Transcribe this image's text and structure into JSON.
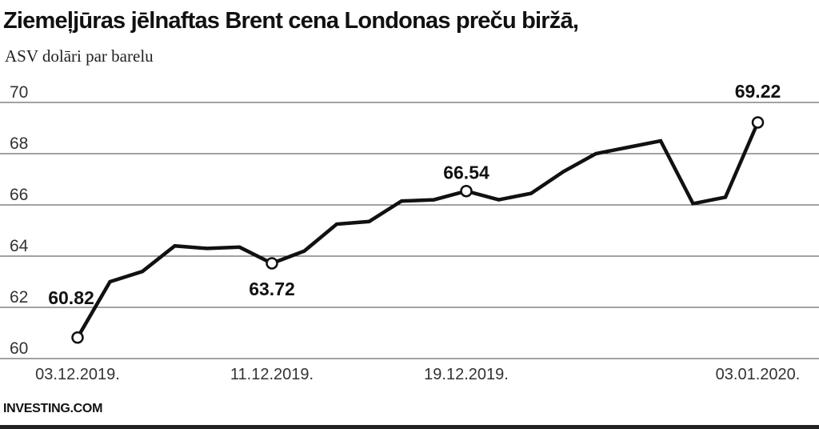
{
  "chart_data": {
    "type": "line",
    "title": "Ziemeļjūras jēlnaftas Brent cena Londonas preču biržā,",
    "ylabel": "ASV dolāri par barelu",
    "xlabel": "",
    "ylim": [
      60,
      70
    ],
    "yticks": [
      70,
      68,
      66,
      64,
      62,
      60
    ],
    "grid": true,
    "xtick_labels": [
      {
        "index": 0,
        "label": "03.12.2019."
      },
      {
        "index": 6,
        "label": "11.12.2019."
      },
      {
        "index": 12,
        "label": "19.12.2019."
      },
      {
        "index": 21,
        "label": "03.01.2020."
      }
    ],
    "series": [
      {
        "values": [
          60.82,
          63.0,
          63.4,
          64.4,
          64.3,
          64.35,
          63.72,
          64.2,
          65.25,
          65.35,
          66.15,
          66.2,
          66.54,
          66.2,
          66.45,
          67.3,
          68.0,
          68.25,
          68.5,
          66.05,
          66.3,
          69.22
        ]
      }
    ],
    "annotations": [
      {
        "index": 0,
        "label": "60.82"
      },
      {
        "index": 6,
        "label": "63.72"
      },
      {
        "index": 12,
        "label": "66.54"
      },
      {
        "index": 21,
        "label": "69.22"
      }
    ],
    "line_color": "#111111",
    "grid_color": "#444444"
  },
  "source": "INVESTING.COM"
}
